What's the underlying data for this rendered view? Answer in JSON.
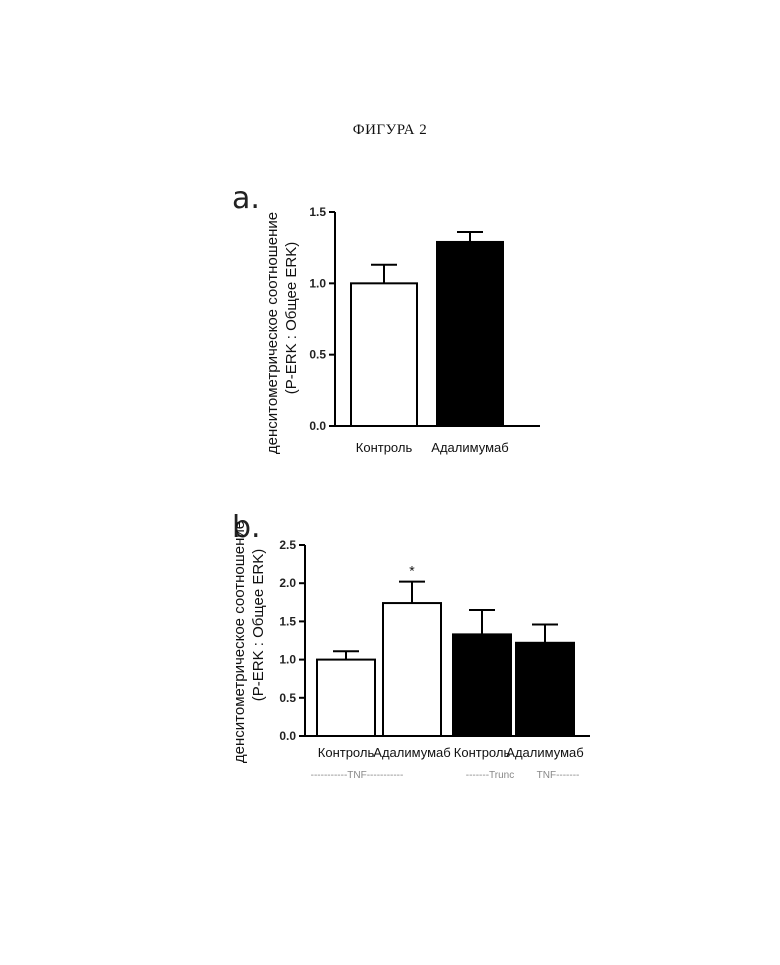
{
  "figure_title": "ФИГУРА 2",
  "chart_data": [
    {
      "type": "bar",
      "panel": "a.",
      "ylabel_line1": "денситометрическое соотношение",
      "ylabel_line2": "(P-ERK : Общее ERK)",
      "ylim": [
        0,
        1.5
      ],
      "yticks": [
        "0.0",
        "0.5",
        "1.0",
        "1.5"
      ],
      "categories": [
        "Контроль",
        "Адалимумаб"
      ],
      "values": [
        1.0,
        1.29
      ],
      "errors": [
        0.13,
        0.07
      ],
      "fills": [
        "#ffffff",
        "#000000"
      ],
      "annotations": [
        "",
        ""
      ]
    },
    {
      "type": "bar",
      "panel": "b.",
      "ylabel_line1": "денситометрическое соотношение",
      "ylabel_line2": "(P-ERK : Общее ERK)",
      "ylim": [
        0,
        2.5
      ],
      "yticks": [
        "0.0",
        "0.5",
        "1.0",
        "1.5",
        "2.0",
        "2.5"
      ],
      "categories": [
        "Контроль",
        "Адалимумаб",
        "Контроль",
        "Адалимумаб"
      ],
      "values": [
        1.0,
        1.74,
        1.33,
        1.22
      ],
      "errors": [
        0.11,
        0.28,
        0.32,
        0.24
      ],
      "fills": [
        "#ffffff",
        "#ffffff",
        "#000000",
        "#000000"
      ],
      "annotations": [
        "",
        "*",
        "",
        ""
      ],
      "group_labels": [
        "-----------TNF-----------",
        "-------Trunc",
        "TNF-------"
      ]
    }
  ]
}
